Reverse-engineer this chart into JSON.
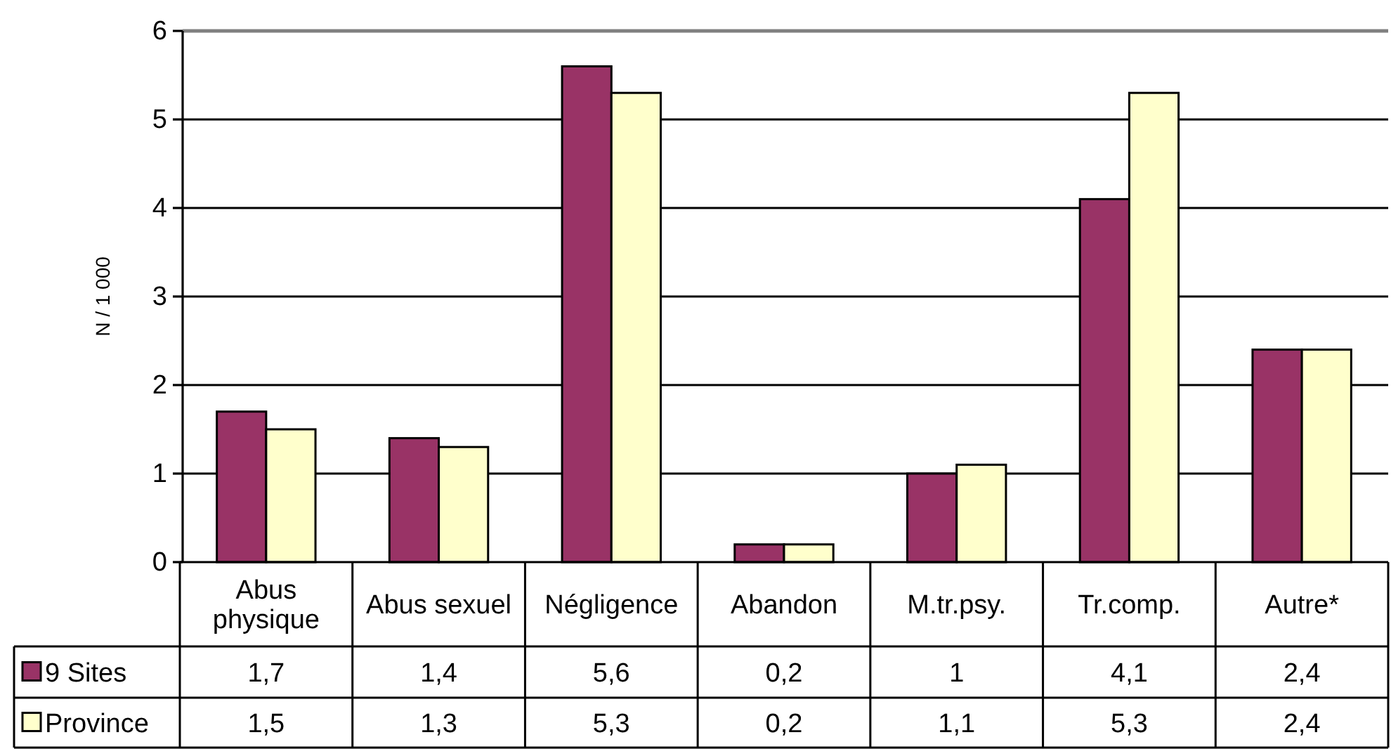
{
  "chart_data": {
    "type": "bar",
    "ylabel": "N / 1 000",
    "categories": [
      "Abus physique",
      "Abus sexuel",
      "Négligence",
      "Abandon",
      "M.tr.psy.",
      "Tr.comp.",
      "Autre*"
    ],
    "series": [
      {
        "name": "9 Sites",
        "color": "#993366",
        "values": [
          1.7,
          1.4,
          5.6,
          0.2,
          1,
          4.1,
          2.4
        ],
        "value_labels": [
          "1,7",
          "1,4",
          "5,6",
          "0,2",
          "1",
          "4,1",
          "2,4"
        ]
      },
      {
        "name": "Province",
        "color": "#ffffcc",
        "values": [
          1.5,
          1.3,
          5.3,
          0.2,
          1.1,
          5.3,
          2.4
        ],
        "value_labels": [
          "1,5",
          "1,3",
          "5,3",
          "0,2",
          "1,1",
          "5,3",
          "2,4"
        ]
      }
    ],
    "ylim": [
      0,
      6
    ],
    "yticks": [
      0,
      1,
      2,
      3,
      4,
      5,
      6
    ],
    "grid": "y",
    "legend": "bottom left"
  }
}
